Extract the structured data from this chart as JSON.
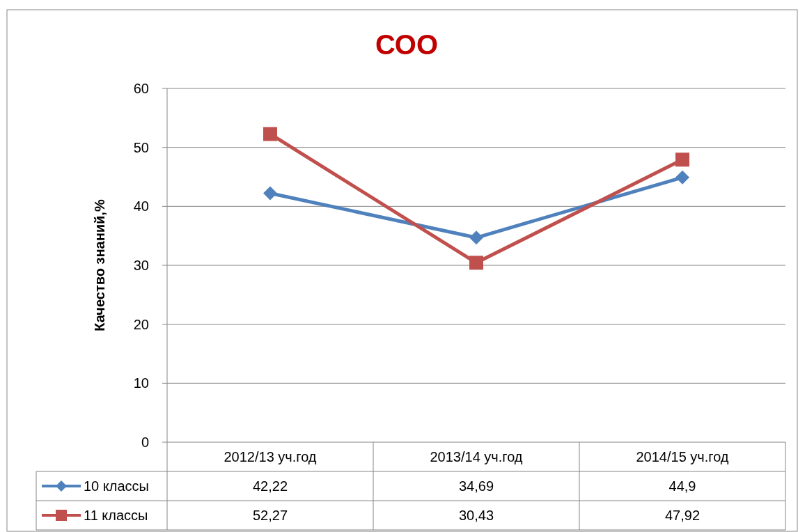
{
  "chart_data": {
    "type": "line",
    "title": "СОО",
    "ylabel": "Качество знаний,%",
    "categories": [
      "2012/13 уч.год",
      "2013/14 уч.год",
      "2014/15 уч.год"
    ],
    "series": [
      {
        "name": "10 классы",
        "color": "#4f81bd",
        "marker": "diamond",
        "values": [
          42.22,
          34.69,
          44.9
        ],
        "value_labels": [
          "42,22",
          "34,69",
          "44,9"
        ]
      },
      {
        "name": "11 классы",
        "color": "#c0504d",
        "marker": "square",
        "values": [
          52.27,
          30.43,
          47.92
        ],
        "value_labels": [
          "52,27",
          "30,43",
          "47,92"
        ]
      }
    ],
    "ylim": [
      0,
      60
    ],
    "yticks": [
      0,
      10,
      20,
      30,
      40,
      50,
      60
    ],
    "grid": "y",
    "legend": "bottom",
    "line_style": "solid"
  }
}
